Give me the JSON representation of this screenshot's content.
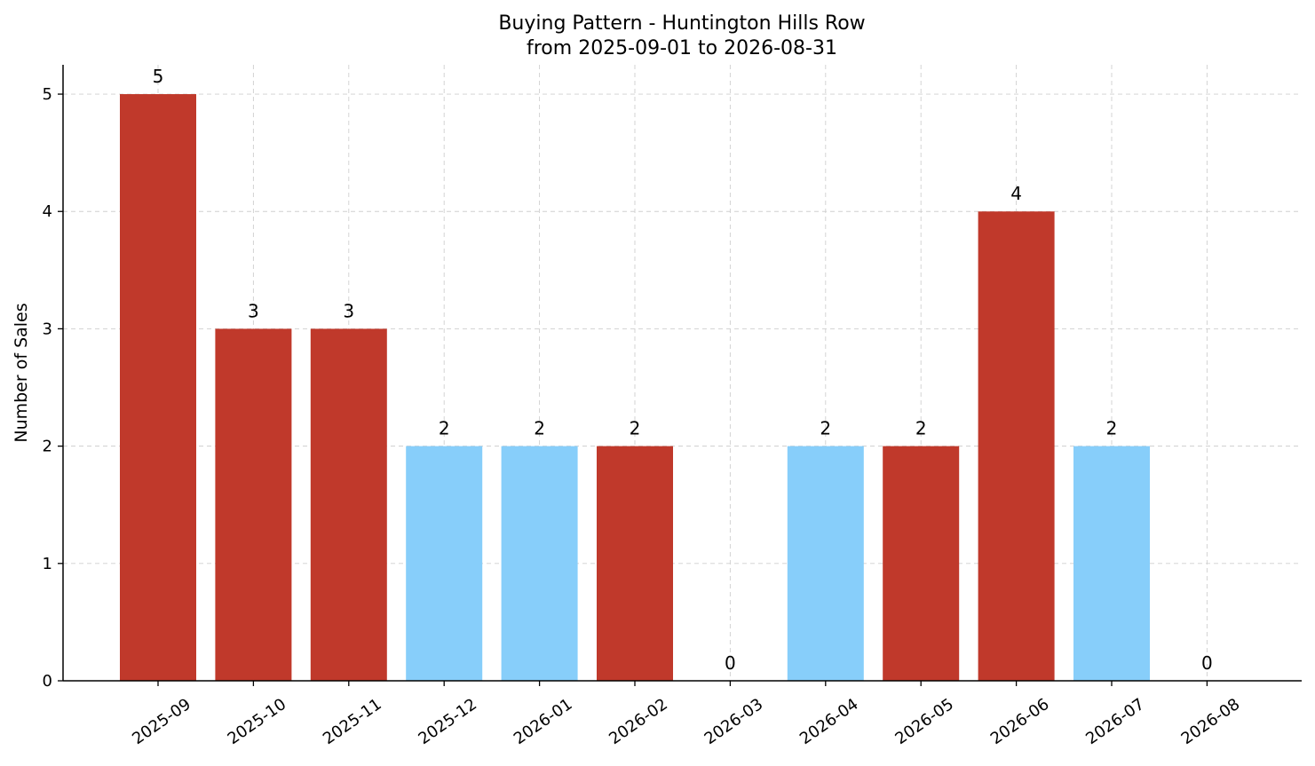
{
  "chart_data": {
    "type": "bar",
    "title": "Buying Pattern - Huntington Hills Row",
    "subtitle": "from 2025-09-01 to 2026-08-31",
    "xlabel": "",
    "ylabel": "Number of Sales",
    "categories": [
      "2025-09",
      "2025-10",
      "2025-11",
      "2025-12",
      "2026-01",
      "2026-02",
      "2026-03",
      "2026-04",
      "2026-05",
      "2026-06",
      "2026-07",
      "2026-08"
    ],
    "values": [
      5,
      3,
      3,
      2,
      2,
      2,
      0,
      2,
      2,
      4,
      2,
      0
    ],
    "bar_colors": [
      "#c0392b",
      "#c0392b",
      "#c0392b",
      "#87cefa",
      "#87cefa",
      "#c0392b",
      "#c0392b",
      "#87cefa",
      "#c0392b",
      "#c0392b",
      "#87cefa",
      "#87cefa"
    ],
    "ylim": [
      0,
      5.25
    ],
    "yticks": [
      0,
      1,
      2,
      3,
      4,
      5
    ],
    "grid": true,
    "legend": "none"
  }
}
